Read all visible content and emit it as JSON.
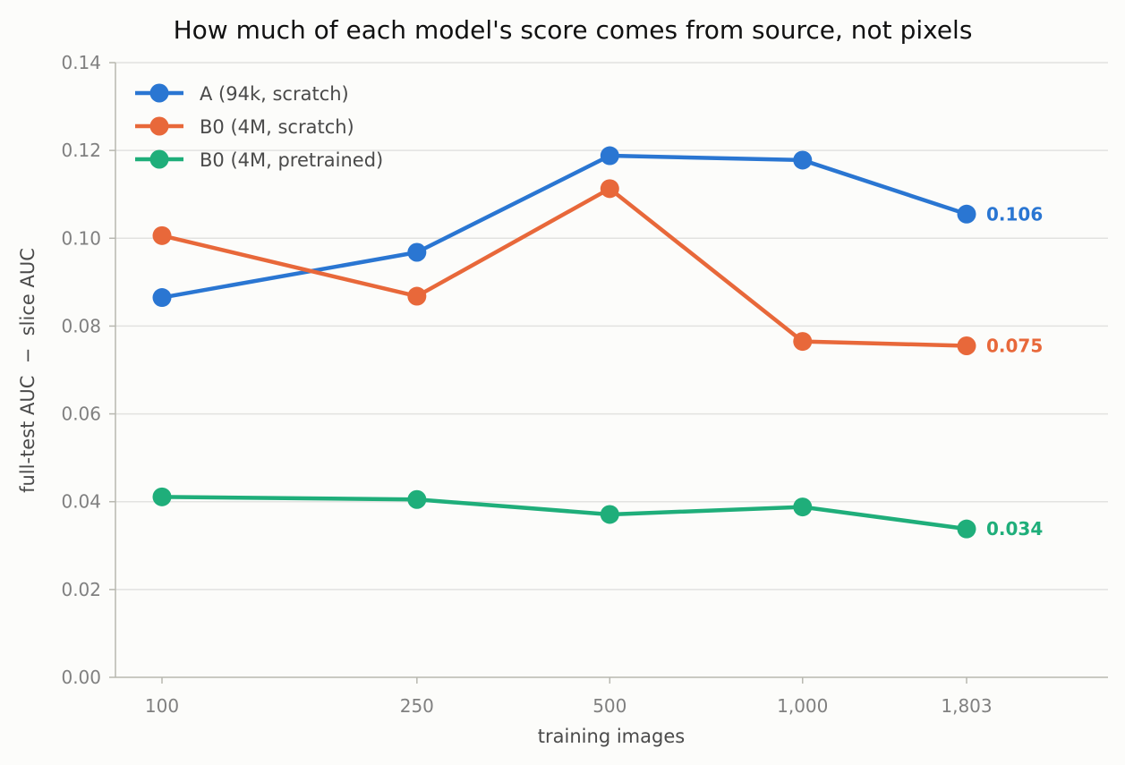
{
  "chart_data": {
    "type": "line",
    "title": "How much of each model's score comes from source, not pixels",
    "xlabel": "training images",
    "ylabel": "full-test AUC  −  slice AUC",
    "x_tick_labels": [
      "100",
      "250",
      "500",
      "1,000",
      "1,803"
    ],
    "x": [
      100,
      250,
      500,
      1000,
      1803
    ],
    "x_scale": "log",
    "ylim": [
      0,
      0.14
    ],
    "y_ticks": [
      "0.00",
      "0.02",
      "0.04",
      "0.06",
      "0.08",
      "0.10",
      "0.12",
      "0.14"
    ],
    "grid": "horizontal",
    "legend_position": "top-left",
    "series": [
      {
        "name": "A (94k, scratch)",
        "color": "#2a76d2",
        "values": [
          0.0865,
          0.0968,
          0.1188,
          0.1178,
          0.1055
        ],
        "end_label": "0.106"
      },
      {
        "name": "B0 (4M, scratch)",
        "color": "#e8683a",
        "values": [
          0.1006,
          0.0868,
          0.1113,
          0.0765,
          0.0755
        ],
        "end_label": "0.075"
      },
      {
        "name": "B0 (4M, pretrained)",
        "color": "#1fae7a",
        "values": [
          0.0411,
          0.0405,
          0.0371,
          0.0388,
          0.0338
        ],
        "end_label": "0.034"
      }
    ]
  }
}
